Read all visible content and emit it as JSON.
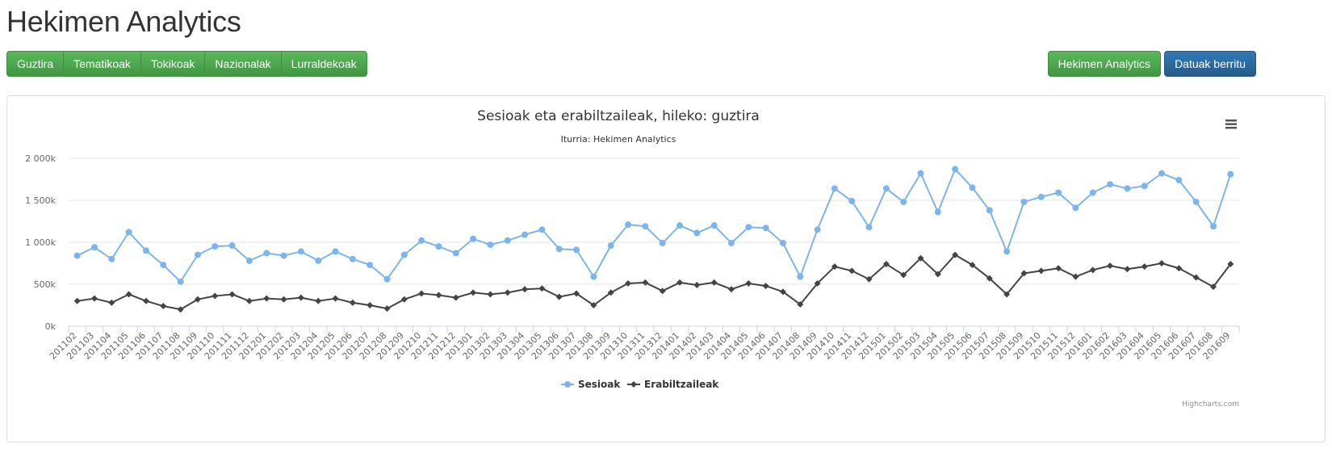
{
  "page": {
    "title": "Hekimen Analytics"
  },
  "nav": {
    "buttons": [
      "Guztira",
      "Tematikoak",
      "Tokikoak",
      "Nazionalak",
      "Lurraldekoak"
    ]
  },
  "actions": {
    "analytics_label": "Hekimen Analytics",
    "refresh_label": "Datuak berritu"
  },
  "chart_data": {
    "type": "line",
    "title": "Sesioak eta erabiltzaileak, hileko: guztira",
    "subtitle": "Iturria: Hekimen Analytics",
    "xlabel": "",
    "ylabel": "",
    "ylim": [
      0,
      2000000
    ],
    "y_ticks": [
      0,
      500000,
      1000000,
      1500000,
      2000000
    ],
    "y_tick_labels": [
      "0k",
      "500k",
      "1 000k",
      "1 500k",
      "2 000k"
    ],
    "grid": true,
    "legend_position": "bottom-center",
    "credits": "Highcharts.com",
    "categories": [
      "201102",
      "201103",
      "201104",
      "201105",
      "201106",
      "201107",
      "201108",
      "201109",
      "201110",
      "201111",
      "201112",
      "201201",
      "201202",
      "201203",
      "201204",
      "201205",
      "201206",
      "201207",
      "201208",
      "201209",
      "201210",
      "201211",
      "201212",
      "201301",
      "201302",
      "201303",
      "201304",
      "201305",
      "201306",
      "201307",
      "201308",
      "201309",
      "201310",
      "201311",
      "201312",
      "201401",
      "201402",
      "201403",
      "201404",
      "201405",
      "201406",
      "201407",
      "201408",
      "201409",
      "201410",
      "201411",
      "201412",
      "201501",
      "201502",
      "201503",
      "201504",
      "201505",
      "201506",
      "201507",
      "201508",
      "201509",
      "201510",
      "201511",
      "201512",
      "201601",
      "201602",
      "201603",
      "201604",
      "201605",
      "201606",
      "201607",
      "201608",
      "201609"
    ],
    "series": [
      {
        "name": "Sesioak",
        "color": "#7cb5ec",
        "marker": "circle",
        "values": [
          840000,
          940000,
          800000,
          1120000,
          900000,
          730000,
          530000,
          850000,
          950000,
          960000,
          780000,
          870000,
          840000,
          890000,
          780000,
          890000,
          800000,
          730000,
          560000,
          850000,
          1020000,
          950000,
          870000,
          1040000,
          970000,
          1020000,
          1090000,
          1150000,
          920000,
          910000,
          590000,
          960000,
          1210000,
          1190000,
          990000,
          1200000,
          1110000,
          1200000,
          990000,
          1180000,
          1170000,
          990000,
          590000,
          1150000,
          1640000,
          1490000,
          1180000,
          1640000,
          1480000,
          1820000,
          1360000,
          1870000,
          1650000,
          1380000,
          890000,
          1480000,
          1540000,
          1590000,
          1410000,
          1590000,
          1690000,
          1640000,
          1670000,
          1820000,
          1740000,
          1480000,
          1190000,
          1810000
        ]
      },
      {
        "name": "Erabiltzaileak",
        "color": "#434348",
        "marker": "diamond",
        "values": [
          300000,
          330000,
          280000,
          380000,
          300000,
          240000,
          200000,
          320000,
          360000,
          380000,
          300000,
          330000,
          320000,
          340000,
          300000,
          330000,
          280000,
          250000,
          210000,
          320000,
          390000,
          370000,
          340000,
          400000,
          380000,
          400000,
          440000,
          450000,
          350000,
          390000,
          250000,
          400000,
          510000,
          520000,
          420000,
          520000,
          490000,
          520000,
          440000,
          510000,
          480000,
          410000,
          260000,
          510000,
          710000,
          660000,
          560000,
          740000,
          610000,
          810000,
          620000,
          850000,
          730000,
          570000,
          380000,
          630000,
          660000,
          690000,
          590000,
          670000,
          720000,
          680000,
          710000,
          750000,
          690000,
          580000,
          470000,
          740000
        ]
      }
    ]
  }
}
